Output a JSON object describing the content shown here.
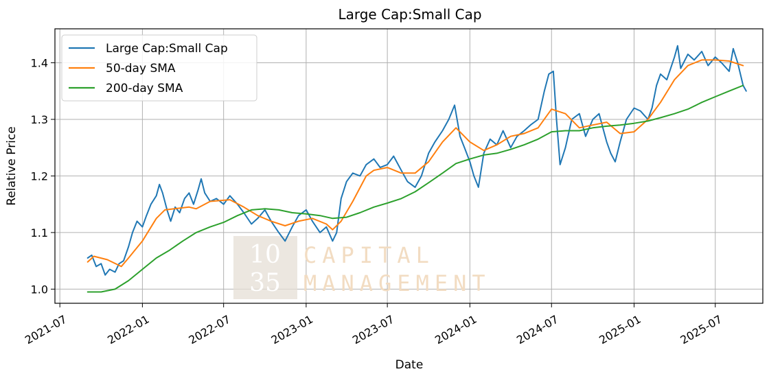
{
  "chart_data": {
    "type": "line",
    "title": "Large Cap:Small Cap",
    "xlabel": "Date",
    "ylabel": "Relative Price",
    "xlim": [
      "2021-06-20",
      "2025-10-15"
    ],
    "ylim": [
      0.975,
      1.46
    ],
    "x_ticks": [
      "2021-07",
      "2022-01",
      "2022-07",
      "2023-01",
      "2023-07",
      "2024-01",
      "2024-07",
      "2025-01",
      "2025-07"
    ],
    "x_tick_dates": [
      "2021-07-01",
      "2022-01-01",
      "2022-07-01",
      "2023-01-01",
      "2023-07-01",
      "2024-01-01",
      "2024-07-01",
      "2025-01-01",
      "2025-07-01"
    ],
    "y_ticks": [
      "1.0",
      "1.1",
      "1.2",
      "1.3",
      "1.4"
    ],
    "y_tick_values": [
      1.0,
      1.1,
      1.2,
      1.3,
      1.4
    ],
    "grid": true,
    "legend_position": "top-left",
    "series": [
      {
        "name": "Large Cap:Small Cap",
        "color": "#1f77b4",
        "points": [
          [
            "2021-09-01",
            1.055
          ],
          [
            "2021-09-10",
            1.06
          ],
          [
            "2021-09-20",
            1.04
          ],
          [
            "2021-10-01",
            1.045
          ],
          [
            "2021-10-10",
            1.025
          ],
          [
            "2021-10-20",
            1.035
          ],
          [
            "2021-11-01",
            1.03
          ],
          [
            "2021-11-10",
            1.045
          ],
          [
            "2021-11-20",
            1.05
          ],
          [
            "2021-12-01",
            1.075
          ],
          [
            "2021-12-10",
            1.1
          ],
          [
            "2021-12-20",
            1.12
          ],
          [
            "2022-01-01",
            1.11
          ],
          [
            "2022-01-10",
            1.13
          ],
          [
            "2022-01-20",
            1.15
          ],
          [
            "2022-02-01",
            1.165
          ],
          [
            "2022-02-08",
            1.185
          ],
          [
            "2022-02-15",
            1.17
          ],
          [
            "2022-02-25",
            1.14
          ],
          [
            "2022-03-05",
            1.12
          ],
          [
            "2022-03-15",
            1.145
          ],
          [
            "2022-03-25",
            1.135
          ],
          [
            "2022-04-05",
            1.16
          ],
          [
            "2022-04-15",
            1.17
          ],
          [
            "2022-04-25",
            1.15
          ],
          [
            "2022-05-05",
            1.175
          ],
          [
            "2022-05-12",
            1.195
          ],
          [
            "2022-05-20",
            1.17
          ],
          [
            "2022-06-01",
            1.155
          ],
          [
            "2022-06-15",
            1.16
          ],
          [
            "2022-07-01",
            1.15
          ],
          [
            "2022-07-15",
            1.165
          ],
          [
            "2022-08-01",
            1.15
          ],
          [
            "2022-08-15",
            1.135
          ],
          [
            "2022-09-01",
            1.115
          ],
          [
            "2022-09-15",
            1.125
          ],
          [
            "2022-10-01",
            1.14
          ],
          [
            "2022-10-15",
            1.12
          ],
          [
            "2022-11-01",
            1.1
          ],
          [
            "2022-11-15",
            1.085
          ],
          [
            "2022-12-01",
            1.11
          ],
          [
            "2022-12-15",
            1.13
          ],
          [
            "2023-01-01",
            1.14
          ],
          [
            "2023-01-15",
            1.12
          ],
          [
            "2023-02-01",
            1.1
          ],
          [
            "2023-02-15",
            1.11
          ],
          [
            "2023-03-01",
            1.085
          ],
          [
            "2023-03-10",
            1.1
          ],
          [
            "2023-03-20",
            1.16
          ],
          [
            "2023-04-01",
            1.19
          ],
          [
            "2023-04-15",
            1.205
          ],
          [
            "2023-05-01",
            1.2
          ],
          [
            "2023-05-15",
            1.22
          ],
          [
            "2023-06-01",
            1.23
          ],
          [
            "2023-06-15",
            1.215
          ],
          [
            "2023-07-01",
            1.22
          ],
          [
            "2023-07-15",
            1.235
          ],
          [
            "2023-08-01",
            1.21
          ],
          [
            "2023-08-15",
            1.19
          ],
          [
            "2023-09-01",
            1.18
          ],
          [
            "2023-09-15",
            1.2
          ],
          [
            "2023-10-01",
            1.24
          ],
          [
            "2023-10-15",
            1.26
          ],
          [
            "2023-11-01",
            1.28
          ],
          [
            "2023-11-15",
            1.3
          ],
          [
            "2023-11-28",
            1.325
          ],
          [
            "2023-12-10",
            1.27
          ],
          [
            "2023-12-20",
            1.25
          ],
          [
            "2024-01-01",
            1.225
          ],
          [
            "2024-01-10",
            1.2
          ],
          [
            "2024-01-20",
            1.18
          ],
          [
            "2024-02-01",
            1.24
          ],
          [
            "2024-02-15",
            1.265
          ],
          [
            "2024-03-01",
            1.255
          ],
          [
            "2024-03-15",
            1.28
          ],
          [
            "2024-04-01",
            1.25
          ],
          [
            "2024-04-15",
            1.27
          ],
          [
            "2024-05-01",
            1.28
          ],
          [
            "2024-05-15",
            1.29
          ],
          [
            "2024-06-01",
            1.3
          ],
          [
            "2024-06-15",
            1.35
          ],
          [
            "2024-06-25",
            1.38
          ],
          [
            "2024-07-05",
            1.385
          ],
          [
            "2024-07-12",
            1.3
          ],
          [
            "2024-07-20",
            1.22
          ],
          [
            "2024-08-01",
            1.25
          ],
          [
            "2024-08-15",
            1.3
          ],
          [
            "2024-09-01",
            1.31
          ],
          [
            "2024-09-15",
            1.27
          ],
          [
            "2024-10-01",
            1.3
          ],
          [
            "2024-10-15",
            1.31
          ],
          [
            "2024-11-01",
            1.26
          ],
          [
            "2024-11-10",
            1.24
          ],
          [
            "2024-11-20",
            1.225
          ],
          [
            "2024-12-01",
            1.26
          ],
          [
            "2024-12-15",
            1.3
          ],
          [
            "2025-01-01",
            1.32
          ],
          [
            "2025-01-15",
            1.315
          ],
          [
            "2025-02-01",
            1.3
          ],
          [
            "2025-02-10",
            1.32
          ],
          [
            "2025-02-20",
            1.36
          ],
          [
            "2025-03-01",
            1.38
          ],
          [
            "2025-03-15",
            1.37
          ],
          [
            "2025-04-01",
            1.41
          ],
          [
            "2025-04-08",
            1.43
          ],
          [
            "2025-04-15",
            1.39
          ],
          [
            "2025-05-01",
            1.415
          ],
          [
            "2025-05-15",
            1.405
          ],
          [
            "2025-06-01",
            1.42
          ],
          [
            "2025-06-15",
            1.395
          ],
          [
            "2025-07-01",
            1.41
          ],
          [
            "2025-07-15",
            1.4
          ],
          [
            "2025-08-01",
            1.385
          ],
          [
            "2025-08-10",
            1.425
          ],
          [
            "2025-08-20",
            1.4
          ],
          [
            "2025-09-01",
            1.36
          ],
          [
            "2025-09-08",
            1.35
          ]
        ]
      },
      {
        "name": "50-day SMA",
        "color": "#ff7f0e",
        "points": [
          [
            "2021-09-01",
            1.048
          ],
          [
            "2021-09-15",
            1.058
          ],
          [
            "2021-10-15",
            1.052
          ],
          [
            "2021-11-15",
            1.04
          ],
          [
            "2021-12-01",
            1.055
          ],
          [
            "2022-01-01",
            1.085
          ],
          [
            "2022-02-01",
            1.125
          ],
          [
            "2022-02-20",
            1.14
          ],
          [
            "2022-04-15",
            1.145
          ],
          [
            "2022-05-01",
            1.142
          ],
          [
            "2022-06-01",
            1.155
          ],
          [
            "2022-07-15",
            1.158
          ],
          [
            "2022-08-15",
            1.145
          ],
          [
            "2022-09-15",
            1.13
          ],
          [
            "2022-10-15",
            1.12
          ],
          [
            "2022-11-15",
            1.112
          ],
          [
            "2022-12-15",
            1.12
          ],
          [
            "2023-01-15",
            1.125
          ],
          [
            "2023-02-15",
            1.115
          ],
          [
            "2023-03-01",
            1.105
          ],
          [
            "2023-03-20",
            1.12
          ],
          [
            "2023-04-15",
            1.155
          ],
          [
            "2023-05-15",
            1.2
          ],
          [
            "2023-06-01",
            1.21
          ],
          [
            "2023-07-01",
            1.215
          ],
          [
            "2023-08-01",
            1.205
          ],
          [
            "2023-09-01",
            1.205
          ],
          [
            "2023-10-01",
            1.225
          ],
          [
            "2023-11-01",
            1.26
          ],
          [
            "2023-12-01",
            1.285
          ],
          [
            "2024-01-01",
            1.26
          ],
          [
            "2024-02-01",
            1.245
          ],
          [
            "2024-03-01",
            1.255
          ],
          [
            "2024-04-01",
            1.27
          ],
          [
            "2024-05-01",
            1.275
          ],
          [
            "2024-06-01",
            1.285
          ],
          [
            "2024-07-01",
            1.318
          ],
          [
            "2024-08-01",
            1.31
          ],
          [
            "2024-09-01",
            1.285
          ],
          [
            "2024-10-01",
            1.29
          ],
          [
            "2024-11-01",
            1.295
          ],
          [
            "2024-12-01",
            1.275
          ],
          [
            "2025-01-01",
            1.278
          ],
          [
            "2025-02-01",
            1.3
          ],
          [
            "2025-03-01",
            1.33
          ],
          [
            "2025-04-01",
            1.37
          ],
          [
            "2025-05-01",
            1.395
          ],
          [
            "2025-06-01",
            1.405
          ],
          [
            "2025-07-01",
            1.405
          ],
          [
            "2025-08-01",
            1.403
          ],
          [
            "2025-09-01",
            1.395
          ]
        ]
      },
      {
        "name": "200-day SMA",
        "color": "#2ca02c",
        "points": [
          [
            "2021-09-01",
            0.995
          ],
          [
            "2021-10-01",
            0.995
          ],
          [
            "2021-11-01",
            1.0
          ],
          [
            "2021-12-01",
            1.015
          ],
          [
            "2022-01-01",
            1.035
          ],
          [
            "2022-02-01",
            1.055
          ],
          [
            "2022-03-01",
            1.068
          ],
          [
            "2022-04-01",
            1.085
          ],
          [
            "2022-05-01",
            1.1
          ],
          [
            "2022-06-01",
            1.11
          ],
          [
            "2022-07-01",
            1.118
          ],
          [
            "2022-08-01",
            1.13
          ],
          [
            "2022-09-01",
            1.14
          ],
          [
            "2022-10-01",
            1.142
          ],
          [
            "2022-11-01",
            1.14
          ],
          [
            "2022-12-01",
            1.135
          ],
          [
            "2023-01-01",
            1.133
          ],
          [
            "2023-02-01",
            1.13
          ],
          [
            "2023-03-01",
            1.125
          ],
          [
            "2023-04-01",
            1.127
          ],
          [
            "2023-05-01",
            1.135
          ],
          [
            "2023-06-01",
            1.145
          ],
          [
            "2023-07-01",
            1.152
          ],
          [
            "2023-08-01",
            1.16
          ],
          [
            "2023-09-01",
            1.172
          ],
          [
            "2023-10-01",
            1.188
          ],
          [
            "2023-11-01",
            1.205
          ],
          [
            "2023-12-01",
            1.222
          ],
          [
            "2024-01-01",
            1.23
          ],
          [
            "2024-02-01",
            1.237
          ],
          [
            "2024-03-01",
            1.24
          ],
          [
            "2024-04-01",
            1.247
          ],
          [
            "2024-05-01",
            1.255
          ],
          [
            "2024-06-01",
            1.265
          ],
          [
            "2024-07-01",
            1.278
          ],
          [
            "2024-08-01",
            1.28
          ],
          [
            "2024-09-01",
            1.28
          ],
          [
            "2024-10-01",
            1.285
          ],
          [
            "2024-11-01",
            1.288
          ],
          [
            "2024-12-01",
            1.29
          ],
          [
            "2025-01-01",
            1.293
          ],
          [
            "2025-02-01",
            1.297
          ],
          [
            "2025-03-01",
            1.303
          ],
          [
            "2025-04-01",
            1.31
          ],
          [
            "2025-05-01",
            1.318
          ],
          [
            "2025-06-01",
            1.33
          ],
          [
            "2025-07-01",
            1.34
          ],
          [
            "2025-08-01",
            1.35
          ],
          [
            "2025-09-01",
            1.36
          ]
        ]
      }
    ]
  },
  "watermark": {
    "line1_num": "10",
    "line2_num": "35",
    "line1_word": "CAPITAL",
    "line2_word": "MANAGEMENT"
  }
}
